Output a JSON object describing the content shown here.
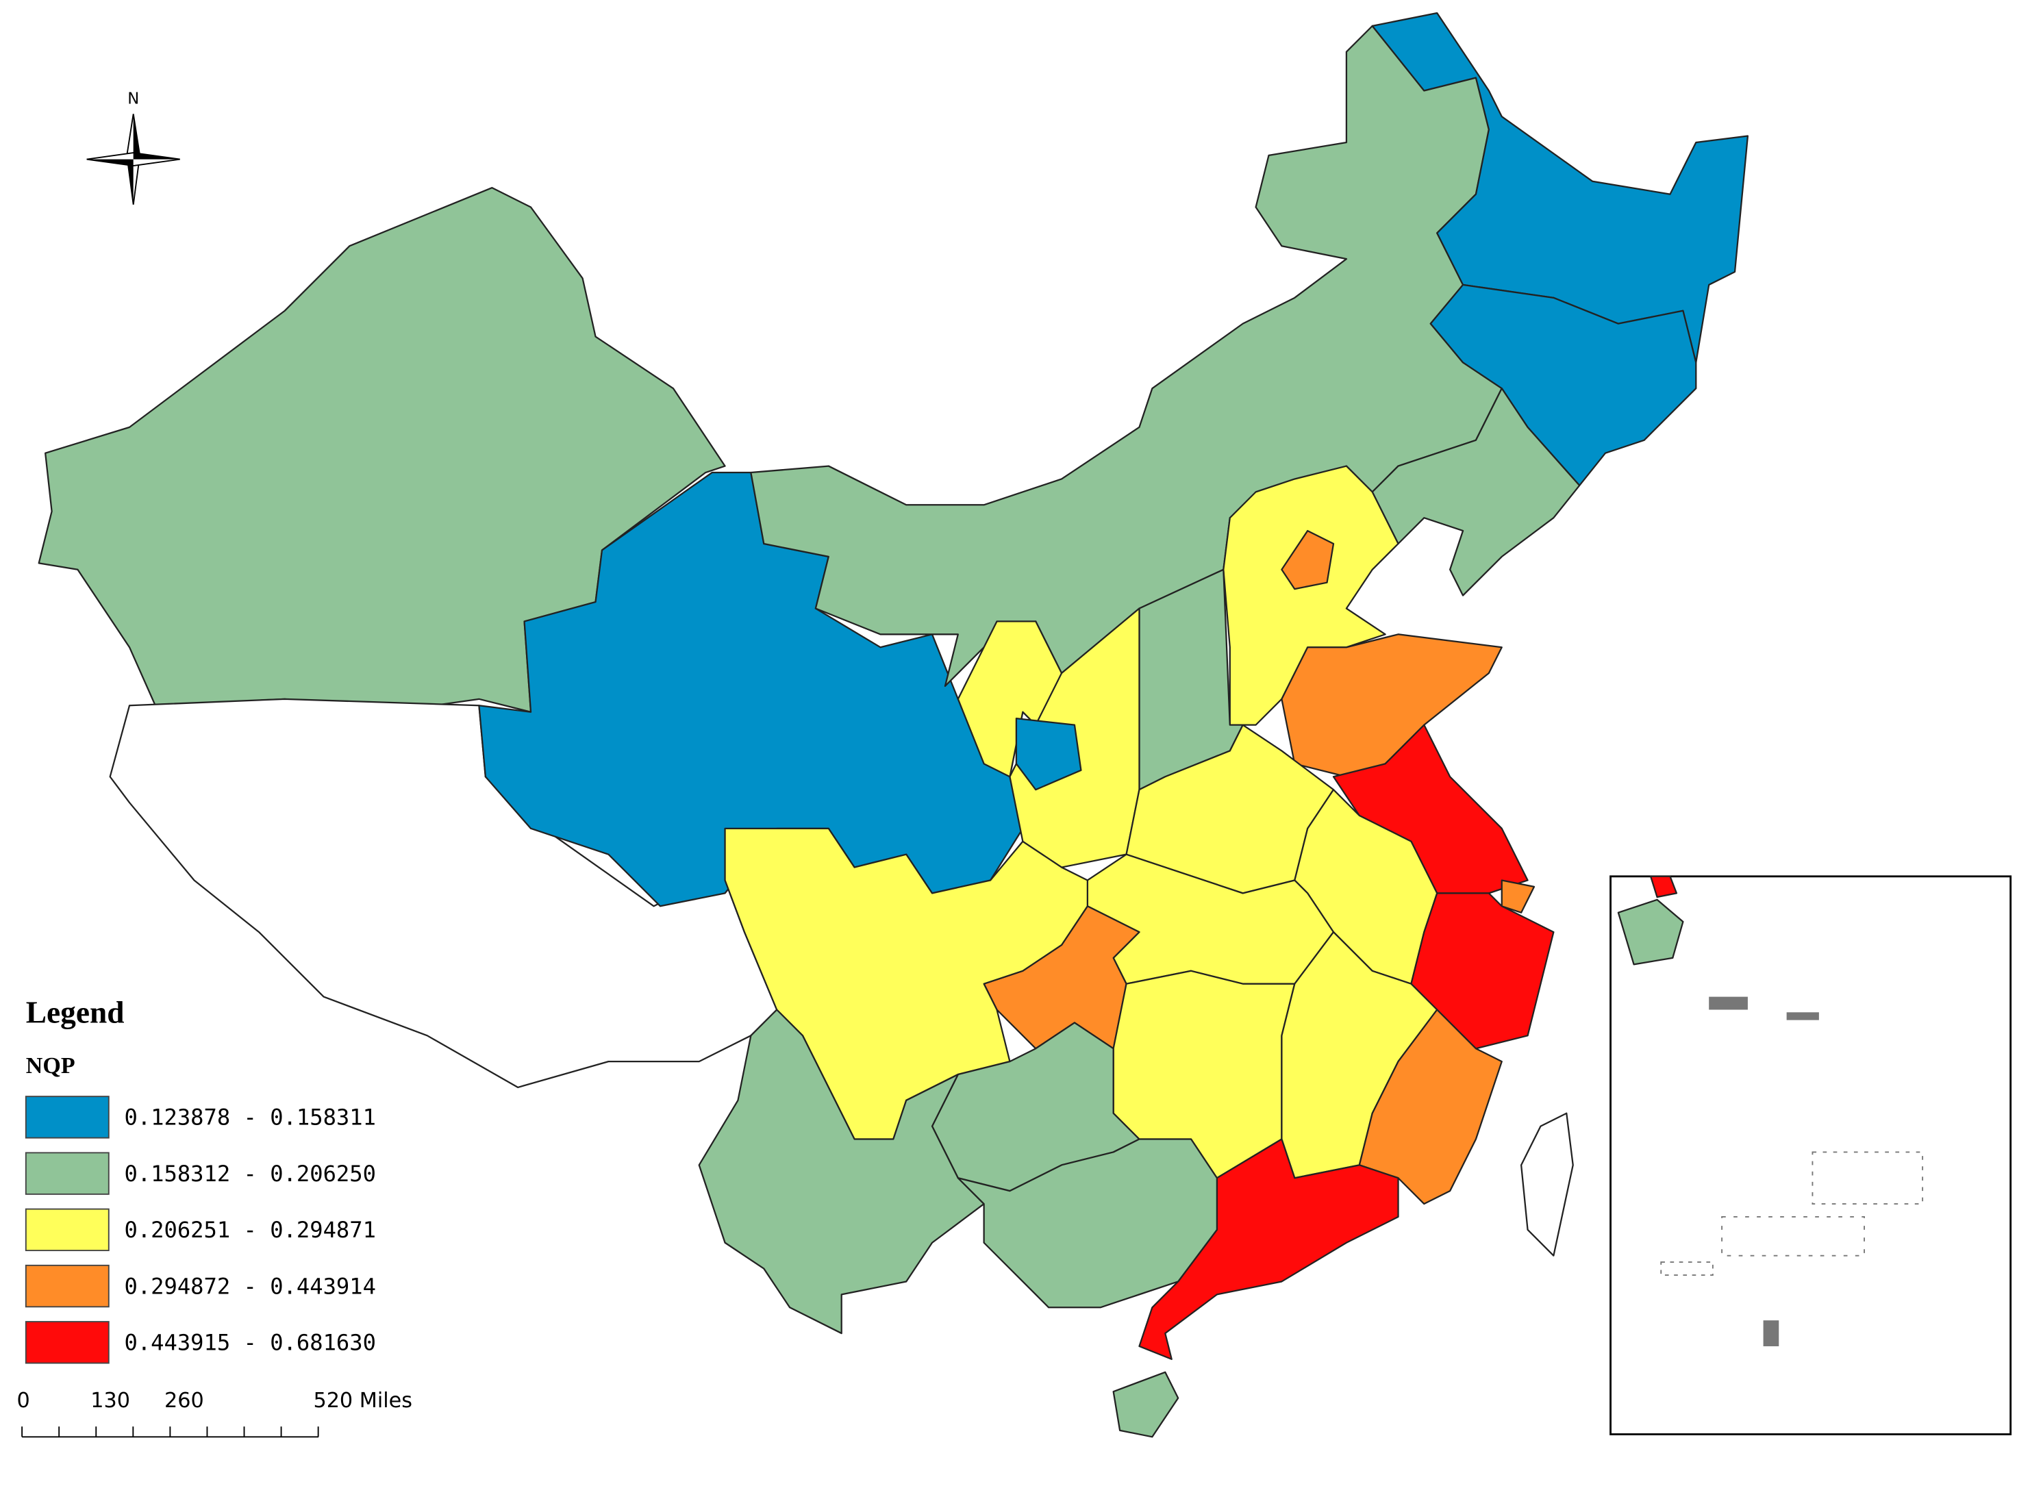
{
  "north": "N",
  "legend": {
    "title": "Legend",
    "field": "NQP",
    "classes": [
      {
        "label": "0.123878 - 0.158311",
        "color": "#0090c8"
      },
      {
        "label": "0.158312 - 0.206250",
        "color": "#90c498"
      },
      {
        "label": "0.206251 - 0.294871",
        "color": "#ffff5a"
      },
      {
        "label": "0.294872 - 0.443914",
        "color": "#ff8c28"
      },
      {
        "label": "0.443915 - 0.681630",
        "color": "#ff0a0a"
      }
    ]
  },
  "scale_bar": {
    "labels": [
      "0",
      "130",
      "260",
      "520 Miles"
    ]
  }
}
